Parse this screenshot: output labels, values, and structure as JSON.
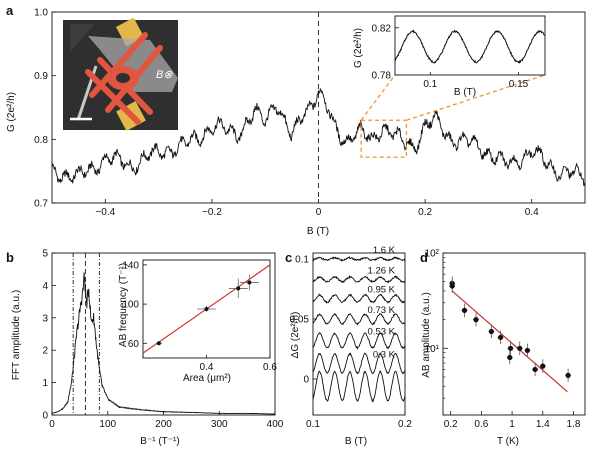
{
  "panel_labels": {
    "a": "a",
    "b": "b",
    "c": "c",
    "d": "d"
  },
  "inset_image": {
    "field_symbol": "B⊗",
    "colors": {
      "background": "#2f2f2f",
      "gate": "#e2553f",
      "contact": "#e2b84a",
      "lead": "#b8b8b8",
      "scale_bar": "#ffffff"
    }
  },
  "chart_data": [
    {
      "id": "a-main",
      "type": "line",
      "xlabel": "B (T)",
      "ylabel": "G (2e²/h)",
      "xlim": [
        -0.5,
        0.5
      ],
      "ylim": [
        0.7,
        1.0
      ],
      "xticks": [
        -0.4,
        -0.2,
        0,
        0.2,
        0.4
      ],
      "xtick_labels": [
        "−0.4",
        "−0.2",
        "0",
        "0.2",
        "0.4"
      ],
      "yticks": [
        0.7,
        0.8,
        0.9,
        1.0
      ],
      "ytick_labels": [
        "0.7",
        "0.8",
        "0.9",
        "1.0"
      ],
      "dashed_vline_x": 0,
      "zoom_box": {
        "x": [
          0.08,
          0.165
        ],
        "y": [
          0.772,
          0.83
        ]
      },
      "series": [
        {
          "x": [
            -0.5,
            -0.45,
            -0.4,
            -0.35,
            -0.3,
            -0.25,
            -0.2,
            -0.15,
            -0.12,
            -0.1,
            -0.08,
            -0.05,
            -0.03,
            -0.01,
            0,
            0.01,
            0.03,
            0.05,
            0.08,
            0.1,
            0.12,
            0.15,
            0.18,
            0.2,
            0.22,
            0.25,
            0.3,
            0.35,
            0.4,
            0.45,
            0.5
          ],
          "y": [
            0.75,
            0.74,
            0.77,
            0.76,
            0.78,
            0.79,
            0.82,
            0.81,
            0.84,
            0.83,
            0.86,
            0.8,
            0.84,
            0.86,
            0.875,
            0.86,
            0.82,
            0.8,
            0.81,
            0.8,
            0.82,
            0.8,
            0.79,
            0.82,
            0.83,
            0.8,
            0.79,
            0.76,
            0.78,
            0.75,
            0.74
          ]
        }
      ]
    },
    {
      "id": "a-inset",
      "type": "line",
      "xlabel": "B (T)",
      "ylabel": "G (2e²/h)",
      "xlim": [
        0.08,
        0.165
      ],
      "ylim": [
        0.78,
        0.83
      ],
      "xticks": [
        0.1,
        0.15
      ],
      "xtick_labels": [
        "0.1",
        "0.15"
      ],
      "yticks": [
        0.78,
        0.82
      ],
      "ytick_labels": [
        "0.78",
        "0.82"
      ],
      "series": [
        {
          "period": 0.024,
          "mean": 0.804,
          "amplitude": 0.013,
          "phase_x": 0.084
        }
      ]
    },
    {
      "id": "b-main",
      "type": "line",
      "xlabel": "B⁻¹ (T⁻¹)",
      "ylabel": "FFT amplitude (a.u.)",
      "xlim": [
        0,
        400
      ],
      "ylim": [
        0,
        5
      ],
      "xticks": [
        0,
        100,
        200,
        300,
        400
      ],
      "xtick_labels": [
        "0",
        "100",
        "200",
        "300",
        "400"
      ],
      "yticks": [
        0,
        1,
        2,
        3,
        4,
        5
      ],
      "ytick_labels": [
        "0",
        "1",
        "2",
        "3",
        "4",
        "5"
      ],
      "marker_lines_x": [
        38,
        60,
        85
      ],
      "series": [
        {
          "x": [
            0,
            10,
            20,
            28,
            35,
            40,
            45,
            50,
            55,
            58,
            62,
            66,
            70,
            75,
            80,
            85,
            90,
            100,
            120,
            150,
            200,
            250,
            300,
            350,
            400
          ],
          "y": [
            0.05,
            0.1,
            0.2,
            0.4,
            1.0,
            1.8,
            2.6,
            3.2,
            3.8,
            4.3,
            3.4,
            3.9,
            2.9,
            3.0,
            2.1,
            1.4,
            0.9,
            0.5,
            0.25,
            0.18,
            0.1,
            0.08,
            0.05,
            0.05,
            0.03
          ]
        }
      ]
    },
    {
      "id": "b-inset",
      "type": "scatter",
      "xlabel": "Area (μm²)",
      "ylabel": "AB frequency (T⁻¹)",
      "xlim": [
        0.2,
        0.6
      ],
      "ylim": [
        45,
        145
      ],
      "xticks": [
        0.2,
        0.4,
        0.6
      ],
      "xtick_labels": [
        "",
        "0.4",
        "0.6"
      ],
      "yticks": [
        60,
        100,
        140
      ],
      "ytick_labels": [
        "60",
        "100",
        "140"
      ],
      "fit_line": {
        "x": [
          0.2,
          0.6
        ],
        "y": [
          50,
          140
        ]
      },
      "points": [
        {
          "x": 0.25,
          "y": 60,
          "xerr": 0.01,
          "yerr": 2
        },
        {
          "x": 0.4,
          "y": 95,
          "xerr": 0.03,
          "yerr": 3
        },
        {
          "x": 0.5,
          "y": 116,
          "xerr": 0.03,
          "yerr": 10
        },
        {
          "x": 0.535,
          "y": 122,
          "xerr": 0.03,
          "yerr": 8
        }
      ]
    },
    {
      "id": "c",
      "type": "line",
      "xlabel": "B (T)",
      "ylabel": "ΔG (2e²/h)",
      "xlim": [
        0.1,
        0.2
      ],
      "ylim": [
        -0.03,
        0.105
      ],
      "xticks": [
        0.1,
        0.2
      ],
      "xtick_labels": [
        "0.1",
        "0.2"
      ],
      "yticks": [
        0,
        0.05,
        0.1
      ],
      "ytick_labels": [
        "0",
        "0.05",
        "0.1"
      ],
      "series": [
        {
          "name": "1.6 K",
          "offset": 0.1,
          "amplitude": 0.001
        },
        {
          "name": "1.26 K",
          "offset": 0.083,
          "amplitude": 0.002
        },
        {
          "name": "0.95 K",
          "offset": 0.067,
          "amplitude": 0.003
        },
        {
          "name": "0.73 K",
          "offset": 0.05,
          "amplitude": 0.004
        },
        {
          "name": "0.53 K",
          "offset": 0.032,
          "amplitude": 0.006
        },
        {
          "name": "0.3 K",
          "offset": 0.013,
          "amplitude": 0.008
        },
        {
          "name": "",
          "offset": -0.006,
          "amplitude": 0.012
        }
      ]
    },
    {
      "id": "d",
      "type": "scatter",
      "xlabel": "T (K)",
      "ylabel": "AB amplitude (a.u.)",
      "xlim": [
        0.1,
        1.95
      ],
      "ylim_log10": [
        0.3,
        2.0
      ],
      "xticks": [
        0.2,
        0.6,
        1,
        1.4,
        1.8
      ],
      "xtick_labels": [
        "0.2",
        "0.6",
        "1",
        "1.4",
        "1.8"
      ],
      "yticks_log10": [
        1,
        2
      ],
      "ytick_labels": [
        "10¹",
        "10²"
      ],
      "fit_line": {
        "x": [
          0.22,
          1.72
        ],
        "y": [
          40,
          3.5
        ]
      },
      "points": [
        {
          "x": 0.22,
          "y": 48
        },
        {
          "x": 0.22,
          "y": 45
        },
        {
          "x": 0.38,
          "y": 25
        },
        {
          "x": 0.53,
          "y": 20
        },
        {
          "x": 0.73,
          "y": 15
        },
        {
          "x": 0.85,
          "y": 13
        },
        {
          "x": 0.98,
          "y": 10
        },
        {
          "x": 1.1,
          "y": 10
        },
        {
          "x": 1.3,
          "y": 6
        },
        {
          "x": 1.4,
          "y": 6.5
        },
        {
          "x": 1.73,
          "y": 5.2
        },
        {
          "x": 0.97,
          "y": 8
        },
        {
          "x": 1.2,
          "y": 9.5
        }
      ]
    }
  ]
}
